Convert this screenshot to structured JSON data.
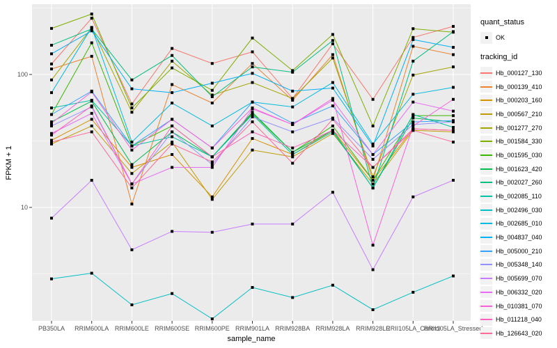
{
  "figure": {
    "panel_bg": "#EBEBEB",
    "grid_color": "#FFFFFF",
    "tick_text_color": "#4D4D4D",
    "marker_color": "#000000"
  },
  "legend": {
    "quant_title": "quant_status",
    "quant_items": [
      {
        "label": "OK",
        "marker": "black-square"
      }
    ],
    "tracking_title": "tracking_id"
  },
  "chart_data": {
    "type": "line",
    "title": "",
    "xlabel": "sample_name",
    "ylabel": "FPKM + 1",
    "y_scale": "log10",
    "ylim": [
      1.4,
      340
    ],
    "y_ticks": [
      10,
      100
    ],
    "grid": "major-and-minor",
    "legend_position": "right",
    "point_marker": "filled-black-square",
    "categories": [
      "PB350LA",
      "RRIM600LA",
      "RRIM600LE",
      "RRIM600SE",
      "RRIM600PE",
      "RRIM901LA",
      "RRIM928BA",
      "RRIM928LA",
      "RRIM928LE",
      "RRII105LA_Control",
      "RRII105LA_Stressed"
    ],
    "series": [
      {
        "name": "Hb_000127_130",
        "color": "#F8766D",
        "values": [
          120,
          265,
          60,
          157,
          121,
          148,
          66,
          170,
          65,
          190,
          230
        ]
      },
      {
        "name": "Hb_000139_410",
        "color": "#EA8331",
        "values": [
          110,
          137,
          10.6,
          84,
          61,
          121,
          64,
          141,
          16,
          163,
          141
        ]
      },
      {
        "name": "Hb_000203_160",
        "color": "#D89000",
        "values": [
          32,
          46,
          20,
          25,
          12,
          33,
          25,
          38,
          16,
          39,
          38
        ]
      },
      {
        "name": "Hb_000567_210",
        "color": "#C09B00",
        "values": [
          30,
          41,
          18,
          31,
          11.5,
          27,
          24,
          36,
          15,
          38,
          37
        ]
      },
      {
        "name": "Hb_001277_270",
        "color": "#A3A500",
        "values": [
          91,
          225,
          52,
          126,
          70,
          87,
          66,
          133,
          17,
          99,
          114
        ]
      },
      {
        "name": "Hb_001584_330",
        "color": "#7CAE00",
        "values": [
          222,
          285,
          56,
          112,
          76,
          188,
          107,
          200,
          41,
          221,
          208
        ]
      },
      {
        "name": "Hb_001595_030",
        "color": "#39B600",
        "values": [
          50,
          173,
          29,
          41,
          24,
          51,
          26,
          41,
          16,
          49,
          49
        ]
      },
      {
        "name": "Hb_001623_420",
        "color": "#00BB4E",
        "values": [
          44,
          63,
          21,
          37,
          24,
          52,
          26,
          38,
          14,
          47,
          44
        ]
      },
      {
        "name": "Hb_002027_260",
        "color": "#00BF7D",
        "values": [
          166,
          220,
          91,
          139,
          68,
          114,
          104,
          180,
          14,
          126,
          210
        ]
      },
      {
        "name": "Hb_002085_110",
        "color": "#00C1A3",
        "values": [
          56,
          64,
          29,
          34,
          24,
          50,
          25,
          37,
          14,
          50,
          40
        ]
      },
      {
        "name": "Hb_002496_030",
        "color": "#00BFC4",
        "values": [
          2.9,
          3.2,
          1.85,
          2.25,
          1.45,
          2.5,
          2.1,
          2.6,
          1.7,
          2.3,
          3.05
        ]
      },
      {
        "name": "Hb_002685_010",
        "color": "#00BAE0",
        "values": [
          73,
          226,
          31,
          61,
          41,
          62,
          57,
          87,
          30,
          71,
          80
        ]
      },
      {
        "name": "Hb_004837_040",
        "color": "#00B0F6",
        "values": [
          143,
          213,
          78,
          73,
          86,
          102,
          75,
          79,
          29,
          183,
          160
        ]
      },
      {
        "name": "Hb_005000_210",
        "color": "#35A2FF",
        "values": [
          50,
          75,
          29,
          46,
          28,
          62,
          43,
          58,
          25,
          44,
          45
        ]
      },
      {
        "name": "Hb_005348_140",
        "color": "#9590FF",
        "values": [
          41,
          57,
          15,
          37,
          21,
          48,
          37,
          47,
          23,
          42,
          44
        ]
      },
      {
        "name": "Hb_005699_070",
        "color": "#C77CFF",
        "values": [
          8.3,
          16,
          4.8,
          6.6,
          6.5,
          7.5,
          7.5,
          13,
          3.4,
          12,
          16
        ]
      },
      {
        "name": "Hb_006332_020",
        "color": "#E76BF3",
        "values": [
          36,
          51,
          15,
          20,
          20,
          55,
          42,
          64,
          25,
          62,
          53
        ]
      },
      {
        "name": "Hb_010381_070",
        "color": "#FA62DB",
        "values": [
          43,
          74,
          27,
          46,
          28,
          56,
          42,
          66,
          5.2,
          41,
          65
        ]
      },
      {
        "name": "Hb_011218_040",
        "color": "#FF62BC",
        "values": [
          35,
          58,
          15,
          41,
          24,
          37,
          28,
          38,
          20,
          39,
          38
        ]
      },
      {
        "name": "Hb_126643_020",
        "color": "#FF6A98",
        "values": [
          31,
          37,
          14,
          30,
          22,
          44,
          21.5,
          46,
          20,
          38,
          31
        ]
      }
    ]
  }
}
